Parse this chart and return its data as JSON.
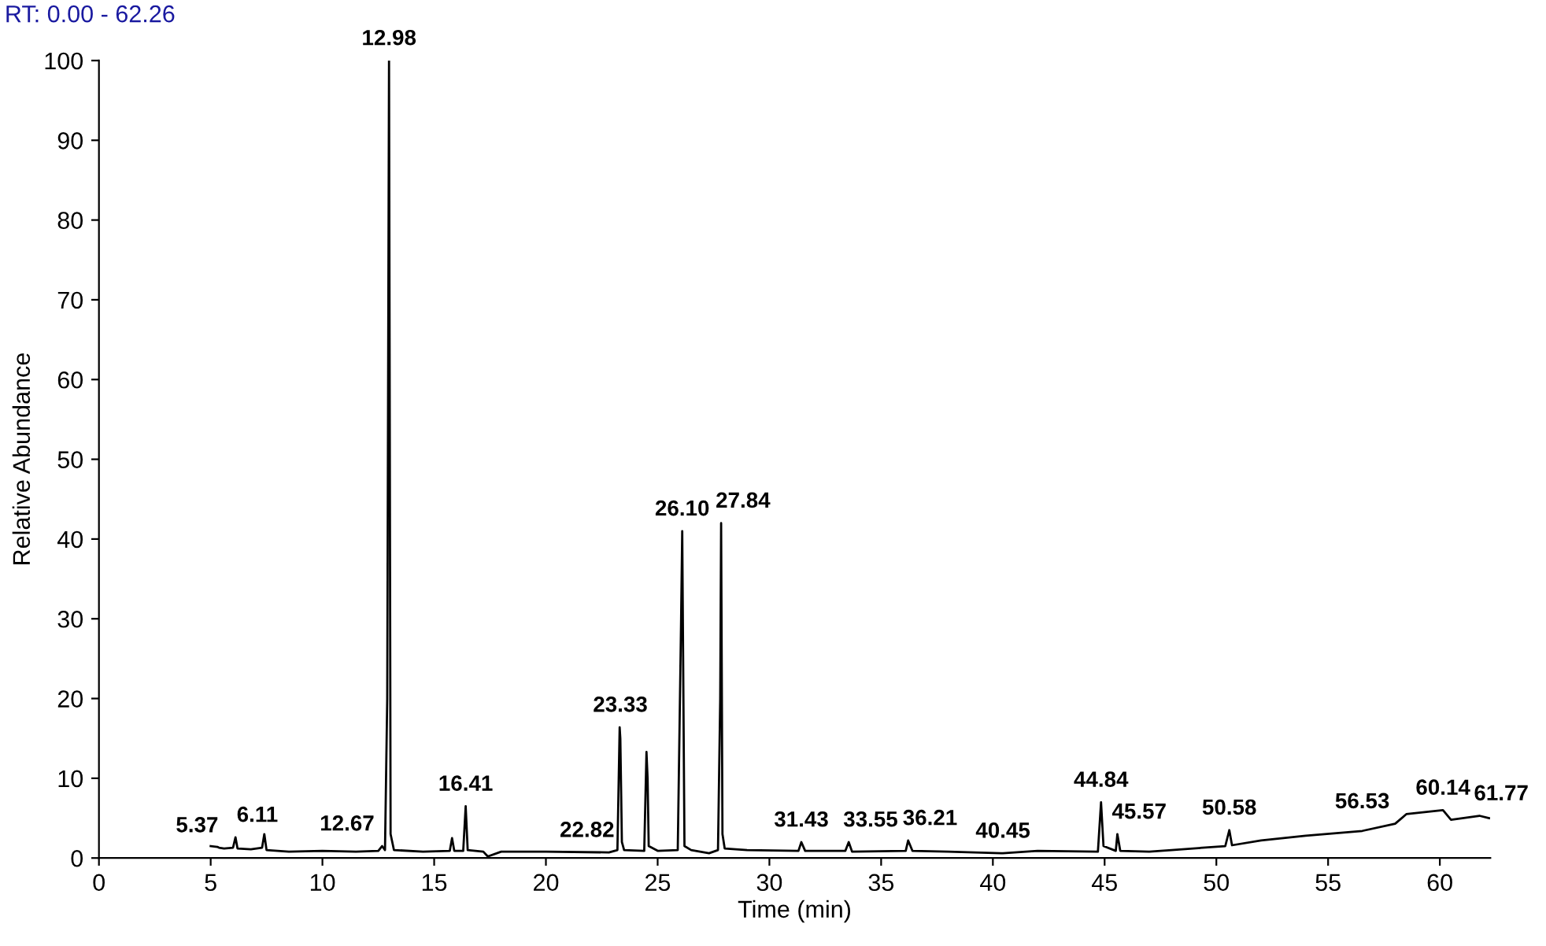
{
  "chart_data": {
    "type": "line",
    "title": "RT: 0.00 - 62.26",
    "xlabel": "Time (min)",
    "ylabel": "Relative Abundance",
    "x": [
      5.0,
      5.3,
      5.37,
      5.6,
      6.0,
      6.11,
      6.2,
      6.8,
      7.3,
      7.4,
      7.5,
      8.5,
      10,
      11.5,
      12.5,
      12.67,
      12.8,
      12.9,
      12.98,
      13.05,
      13.2,
      14.5,
      15.7,
      15.8,
      15.9,
      16.3,
      16.41,
      16.5,
      17.2,
      17.4,
      18,
      20,
      22.82,
      23.2,
      23.3,
      23.33,
      23.4,
      23.5,
      24.4,
      24.5,
      24.55,
      24.6,
      25,
      25.9,
      26.05,
      26.1,
      26.2,
      26.5,
      27.3,
      27.7,
      27.8,
      27.84,
      27.9,
      28.0,
      29,
      31.3,
      31.43,
      31.6,
      33.4,
      33.55,
      33.7,
      36.1,
      36.21,
      36.4,
      38,
      40.45,
      42,
      44.7,
      44.84,
      44.95,
      45.5,
      45.57,
      45.7,
      47,
      48,
      50.4,
      50.58,
      50.7,
      52,
      54,
      56.53,
      58,
      58.5,
      60.14,
      60.5,
      61.77,
      62.2
    ],
    "series": [
      {
        "color": "#000000",
        "values": [
          1.5,
          1.4,
          1.3,
          1.2,
          1.3,
          2.6,
          1.2,
          1.1,
          1.3,
          3.0,
          1.0,
          0.8,
          0.9,
          0.8,
          0.9,
          1.5,
          1.0,
          20,
          100,
          3,
          1.0,
          0.8,
          0.9,
          2.5,
          0.9,
          0.9,
          6.5,
          1.0,
          0.8,
          0.2,
          0.8,
          0.8,
          0.7,
          1.0,
          16.4,
          15,
          2,
          1.0,
          0.9,
          13.3,
          10,
          1.5,
          0.9,
          1.0,
          30,
          41,
          1.5,
          1.0,
          0.6,
          1.0,
          20,
          42,
          3,
          1.2,
          1.0,
          0.9,
          2.0,
          0.9,
          0.9,
          2.0,
          0.8,
          0.9,
          2.2,
          0.9,
          0.8,
          0.6,
          0.9,
          0.8,
          7.0,
          1.5,
          0.9,
          3.0,
          0.9,
          0.8,
          1.0,
          1.5,
          3.5,
          1.6,
          2.2,
          2.8,
          3.4,
          4.3,
          5.5,
          6.0,
          4.8,
          5.3,
          5.0
        ]
      }
    ],
    "annotations": [
      {
        "text": "5.37",
        "x": 5.37,
        "y": 1.3
      },
      {
        "text": "6.11",
        "x": 6.11,
        "y": 2.6
      },
      {
        "text": "12.67",
        "x": 12.67,
        "y": 1.5
      },
      {
        "text": "12.98",
        "x": 12.98,
        "y": 100
      },
      {
        "text": "16.41",
        "x": 16.41,
        "y": 6.5
      },
      {
        "text": "22.82",
        "x": 22.82,
        "y": 0.7
      },
      {
        "text": "23.33",
        "x": 23.33,
        "y": 16.4
      },
      {
        "text": "26.10",
        "x": 26.1,
        "y": 41
      },
      {
        "text": "27.84",
        "x": 27.84,
        "y": 42
      },
      {
        "text": "31.43",
        "x": 31.43,
        "y": 2.0
      },
      {
        "text": "33.55",
        "x": 33.55,
        "y": 2.0
      },
      {
        "text": "36.21",
        "x": 36.21,
        "y": 2.2
      },
      {
        "text": "40.45",
        "x": 40.45,
        "y": 0.6
      },
      {
        "text": "44.84",
        "x": 44.84,
        "y": 7.0
      },
      {
        "text": "45.57",
        "x": 45.57,
        "y": 3.0
      },
      {
        "text": "50.58",
        "x": 50.58,
        "y": 3.5
      },
      {
        "text": "56.53",
        "x": 56.53,
        "y": 4.3
      },
      {
        "text": "60.14",
        "x": 60.14,
        "y": 6.0
      },
      {
        "text": "61.77",
        "x": 61.77,
        "y": 5.3
      }
    ],
    "xlim": [
      0,
      62.26
    ],
    "ylim": [
      0,
      100
    ],
    "xticks": [
      0,
      5,
      10,
      15,
      20,
      25,
      30,
      35,
      40,
      45,
      50,
      55,
      60
    ],
    "yticks": [
      0,
      10,
      20,
      30,
      40,
      50,
      60,
      70,
      80,
      90,
      100
    ],
    "grid": false,
    "marker": "none",
    "line_style": "solid"
  }
}
